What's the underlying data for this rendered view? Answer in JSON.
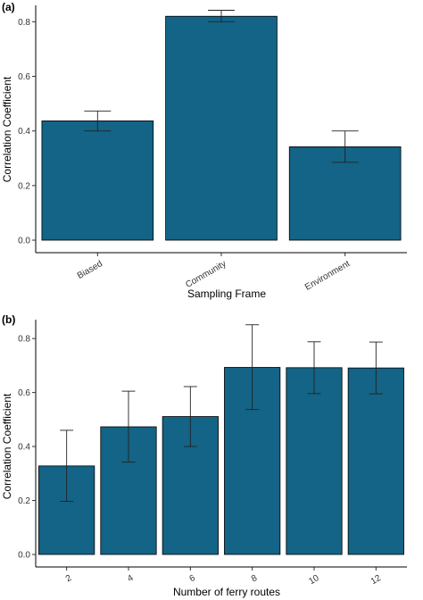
{
  "chart_data": [
    {
      "panel": "(a)",
      "type": "bar",
      "title": "",
      "categories": [
        "Biased",
        "Community",
        "Environment"
      ],
      "values": [
        0.437,
        0.82,
        0.342
      ],
      "error_low": [
        0.4,
        0.8,
        0.285
      ],
      "error_high": [
        0.473,
        0.842,
        0.4
      ],
      "xlabel": "Sampling Frame",
      "ylabel": "Correlation Coefficient",
      "ylim": [
        0,
        0.86
      ],
      "yticks": [
        "0.0",
        "0.2",
        "0.4",
        "0.6",
        "0.8"
      ],
      "grid": false,
      "bar_color": "#136486"
    },
    {
      "panel": "(b)",
      "type": "bar",
      "title": "",
      "categories": [
        "2",
        "4",
        "6",
        "8",
        "10",
        "12"
      ],
      "values": [
        0.328,
        0.473,
        0.511,
        0.693,
        0.692,
        0.691
      ],
      "error_low": [
        0.197,
        0.342,
        0.4,
        0.537,
        0.596,
        0.595
      ],
      "error_high": [
        0.46,
        0.605,
        0.622,
        0.851,
        0.788,
        0.787
      ],
      "xlabel": "Number of ferry routes",
      "ylabel": "Correlation Coefficient",
      "ylim": [
        0,
        0.87
      ],
      "yticks": [
        "0.0",
        "0.2",
        "0.4",
        "0.6",
        "0.8"
      ],
      "grid": false,
      "bar_color": "#136486"
    }
  ]
}
